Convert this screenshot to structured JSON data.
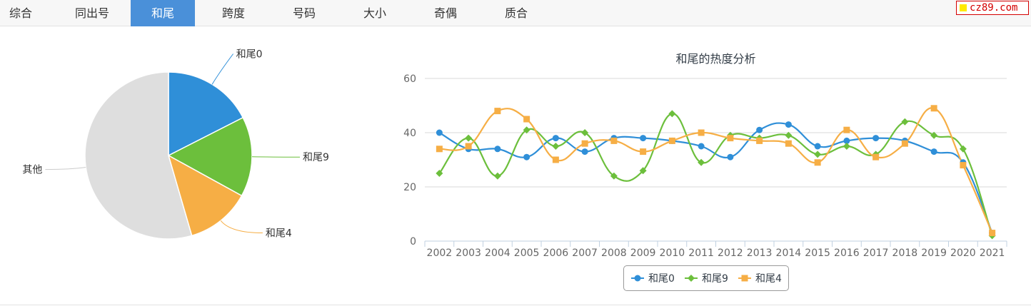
{
  "tabs": [
    {
      "label": "综合",
      "active": false
    },
    {
      "label": "同出号",
      "active": false
    },
    {
      "label": "和尾",
      "active": true
    },
    {
      "label": "跨度",
      "active": false
    },
    {
      "label": "号码",
      "active": false
    },
    {
      "label": "大小",
      "active": false
    },
    {
      "label": "奇偶",
      "active": false
    },
    {
      "label": "质合",
      "active": false
    }
  ],
  "site_badge": "cz89.com",
  "chart_data": [
    {
      "type": "pie",
      "title": "",
      "slices": [
        {
          "label": "和尾0",
          "value": 17.5,
          "color": "#2f8fd8"
        },
        {
          "label": "和尾9",
          "value": 15.5,
          "color": "#6cbf3c"
        },
        {
          "label": "和尾4",
          "value": 12.5,
          "color": "#f6ae45"
        },
        {
          "label": "其他",
          "value": 54.5,
          "color": "#dedede"
        }
      ]
    },
    {
      "type": "line",
      "title": "和尾的热度分析",
      "xlabel": "",
      "ylabel": "",
      "ylim": [
        0,
        60
      ],
      "yticks": [
        0,
        20,
        40,
        60
      ],
      "grid": true,
      "legend": "bottom-center",
      "x": [
        "2002",
        "2003",
        "2004",
        "2005",
        "2006",
        "2007",
        "2008",
        "2009",
        "2010",
        "2011",
        "2012",
        "2013",
        "2014",
        "2015",
        "2016",
        "2017",
        "2018",
        "2019",
        "2020",
        "2021"
      ],
      "series": [
        {
          "name": "和尾0",
          "color": "#2f8fd8",
          "marker": "circle",
          "values": [
            40,
            34,
            34,
            31,
            38,
            33,
            38,
            38,
            37,
            35,
            31,
            41,
            43,
            35,
            37,
            38,
            37,
            33,
            29,
            3
          ]
        },
        {
          "name": "和尾9",
          "color": "#6cbf3c",
          "marker": "diamond",
          "values": [
            25,
            38,
            24,
            41,
            35,
            40,
            24,
            26,
            47,
            29,
            39,
            38,
            39,
            32,
            35,
            32,
            44,
            39,
            34,
            2
          ]
        },
        {
          "name": "和尾4",
          "color": "#f6ae45",
          "marker": "square",
          "values": [
            34,
            35,
            48,
            45,
            30,
            36,
            37,
            33,
            37,
            40,
            38,
            37,
            36,
            29,
            41,
            31,
            36,
            49,
            28,
            3
          ]
        }
      ]
    }
  ]
}
